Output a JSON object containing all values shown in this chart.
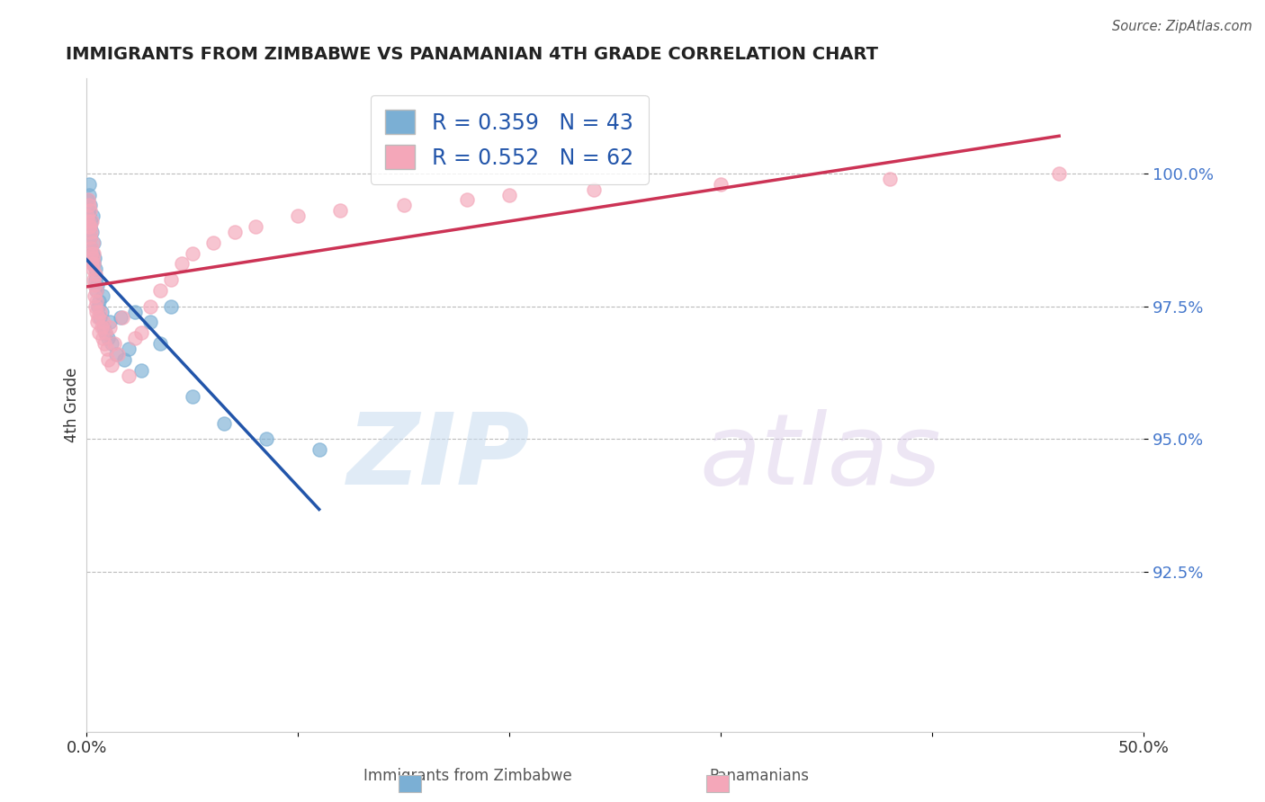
{
  "title": "IMMIGRANTS FROM ZIMBABWE VS PANAMANIAN 4TH GRADE CORRELATION CHART",
  "source": "Source: ZipAtlas.com",
  "xlabel_bottom": "Immigrants from Zimbabwe",
  "xlabel_bottom2": "Panamanians",
  "ylabel": "4th Grade",
  "xlim": [
    0.0,
    50.0
  ],
  "ylim": [
    89.5,
    101.8
  ],
  "yticks": [
    92.5,
    95.0,
    97.5,
    100.0
  ],
  "ytick_labels": [
    "92.5%",
    "95.0%",
    "97.5%",
    "100.0%"
  ],
  "blue_color": "#7BAFD4",
  "pink_color": "#F4A7B9",
  "blue_line_color": "#2255AA",
  "pink_line_color": "#CC3355",
  "legend_text_color": "#2255AA",
  "R_blue": 0.359,
  "N_blue": 43,
  "R_pink": 0.552,
  "N_pink": 62,
  "blue_scatter_x": [
    0.05,
    0.08,
    0.1,
    0.12,
    0.14,
    0.15,
    0.17,
    0.18,
    0.2,
    0.22,
    0.25,
    0.28,
    0.3,
    0.32,
    0.35,
    0.38,
    0.4,
    0.42,
    0.45,
    0.5,
    0.55,
    0.6,
    0.65,
    0.7,
    0.75,
    0.8,
    0.9,
    1.0,
    1.1,
    1.2,
    1.4,
    1.6,
    1.8,
    2.0,
    2.3,
    2.6,
    3.0,
    3.5,
    4.0,
    5.0,
    6.5,
    8.5,
    11.0
  ],
  "blue_scatter_y": [
    99.5,
    99.3,
    99.6,
    99.8,
    99.2,
    99.0,
    99.4,
    98.8,
    99.1,
    98.6,
    98.9,
    98.5,
    99.2,
    98.3,
    98.7,
    98.4,
    98.2,
    98.0,
    97.8,
    97.9,
    97.5,
    97.6,
    97.3,
    97.4,
    97.7,
    97.1,
    97.0,
    96.9,
    97.2,
    96.8,
    96.6,
    97.3,
    96.5,
    96.7,
    97.4,
    96.3,
    97.2,
    96.8,
    97.5,
    95.8,
    95.3,
    95.0,
    94.8
  ],
  "pink_scatter_x": [
    0.05,
    0.07,
    0.09,
    0.11,
    0.13,
    0.15,
    0.17,
    0.18,
    0.19,
    0.2,
    0.22,
    0.23,
    0.25,
    0.27,
    0.28,
    0.3,
    0.32,
    0.34,
    0.35,
    0.37,
    0.38,
    0.4,
    0.42,
    0.44,
    0.46,
    0.48,
    0.5,
    0.55,
    0.6,
    0.65,
    0.7,
    0.75,
    0.8,
    0.85,
    0.9,
    0.95,
    1.0,
    1.1,
    1.2,
    1.3,
    1.5,
    1.7,
    2.0,
    2.3,
    2.6,
    3.0,
    3.5,
    4.0,
    4.5,
    5.0,
    6.0,
    7.0,
    8.0,
    10.0,
    12.0,
    15.0,
    18.0,
    20.0,
    24.0,
    30.0,
    38.0,
    46.0
  ],
  "pink_scatter_y": [
    99.2,
    99.5,
    99.1,
    99.4,
    99.0,
    99.3,
    98.8,
    99.0,
    98.6,
    98.9,
    98.5,
    99.1,
    98.3,
    98.7,
    98.4,
    98.2,
    98.5,
    98.0,
    98.3,
    97.9,
    97.7,
    98.1,
    97.5,
    97.8,
    97.4,
    97.6,
    97.2,
    97.3,
    97.0,
    97.4,
    97.1,
    96.9,
    97.2,
    96.8,
    97.0,
    96.7,
    96.5,
    97.1,
    96.4,
    96.8,
    96.6,
    97.3,
    96.2,
    96.9,
    97.0,
    97.5,
    97.8,
    98.0,
    98.3,
    98.5,
    98.7,
    98.9,
    99.0,
    99.2,
    99.3,
    99.4,
    99.5,
    99.6,
    99.7,
    99.8,
    99.9,
    100.0
  ]
}
